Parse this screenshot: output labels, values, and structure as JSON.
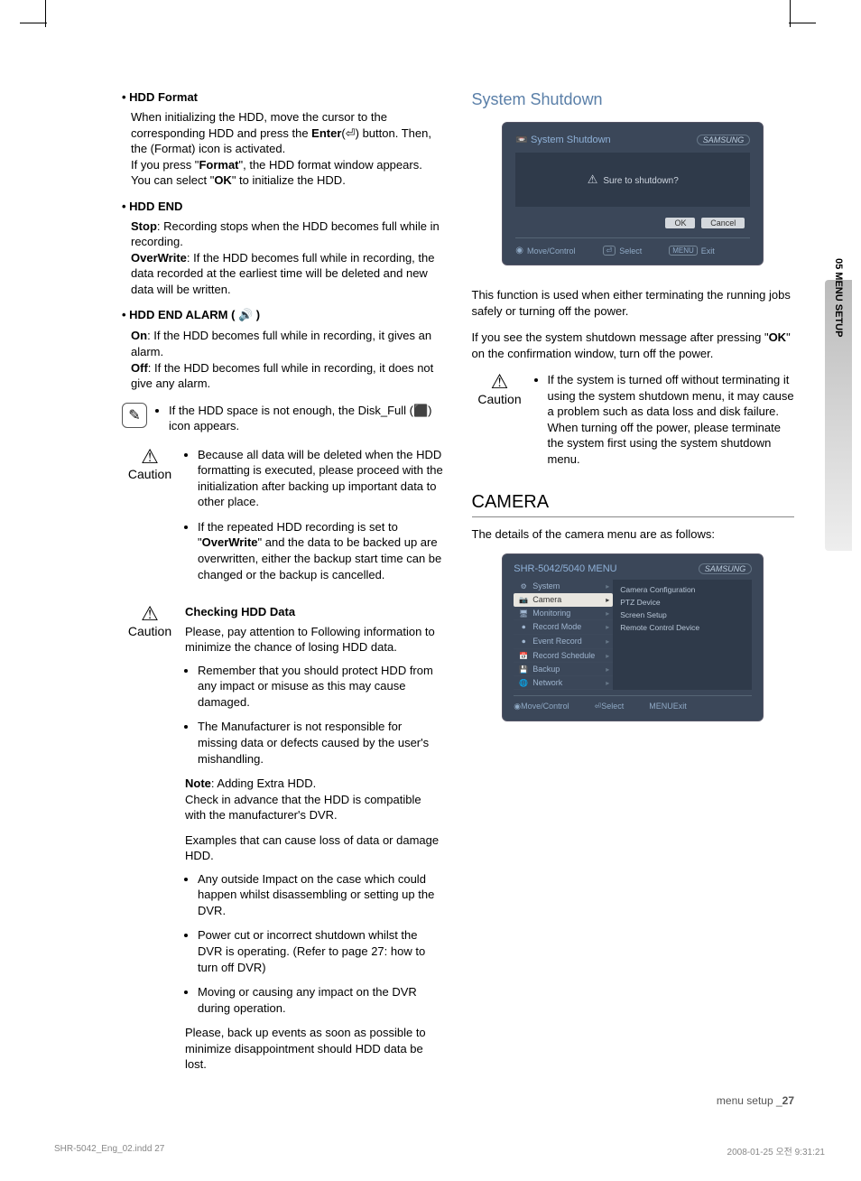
{
  "colors": {
    "heading_blue": "#5a7fa8",
    "dialog_bg": "#3b4759",
    "dialog_mid_bg": "#2f3a4a",
    "dialog_text": "#cfd6e0",
    "dialog_accent": "#8fb1d8"
  },
  "left": {
    "hdd_format": {
      "title": "HDD Format",
      "body_pre": "When initializing the HDD, move the cursor to the corresponding HDD and press the ",
      "enter": "Enter",
      "body_post": "(⏎) button. Then, the (Format) icon is activated.",
      "body2_pre": "If you press \"",
      "format": "Format",
      "body2_mid": "\", the HDD format window appears. You can select \"",
      "ok": "OK",
      "body2_post": "\" to initialize the HDD."
    },
    "hdd_end": {
      "title": "HDD END",
      "stop_label": "Stop",
      "stop": ": Recording stops when the HDD becomes full while in recording.",
      "over_label": "OverWrite",
      "over": ": If the HDD becomes full while in recording, the data recorded at the earliest time will be deleted and new data will be written."
    },
    "hdd_alarm": {
      "title": "HDD END ALARM ( 🔊 )",
      "on_label": "On",
      "on": ": If the HDD becomes full while in recording, it gives an alarm.",
      "off_label": "Off",
      "off": ": If the HDD becomes full while in recording, it does not give any alarm."
    },
    "note": "If the HDD space is not enough, the Disk_Full (⬛) icon appears.",
    "caution1": {
      "item1_pre": "Because all data will be deleted when the HDD formatting is executed, please proceed with the initialization after backing up important data to other place.",
      "item2_pre": "If the repeated HDD recording is set to \"",
      "item2_bold": "OverWrite",
      "item2_post": "\" and the data to be backed up are overwritten, either the backup start time can be changed or the backup is cancelled."
    },
    "caution2": {
      "heading": "Checking HDD Data",
      "intro": "Please, pay attention to Following information to minimize the chance of losing HDD data.",
      "b1": "Remember that you should protect HDD from any impact or misuse as this may cause damaged.",
      "b2": "The Manufacturer is not responsible for missing data or defects caused by the user's mishandling.",
      "note_label": "Note",
      "note_text": ": Adding Extra HDD.",
      "check": "Check in advance that the HDD is compatible with the manufacturer's DVR.",
      "examples": "Examples that can cause loss of data or damage HDD.",
      "e1": "Any outside Impact on the case which could happen whilst  disassembling or setting up the DVR.",
      "e2": "Power cut or incorrect shutdown whilst the DVR is operating. (Refer to page 27: how to turn off DVR)",
      "e3": "Moving or causing any impact on the DVR during operation.",
      "final": "Please, back up events as soon as possible to minimize disappointment should HDD data be lost."
    }
  },
  "right": {
    "shutdown_title": "System Shutdown",
    "dlg": {
      "title": "System Shutdown",
      "brand": "SAMSUNG",
      "msg": "Sure to shutdown?",
      "ok": "OK",
      "cancel": "Cancel",
      "move": "Move/Control",
      "select": "Select",
      "exit": "Exit"
    },
    "shutdown_body1": "This function is used when either terminating the running jobs safely or turning off the power.",
    "shutdown_body2a": "If you see the system shutdown message after pressing \"",
    "shutdown_body2b": "OK",
    "shutdown_body2c": "\" on the confirmation window, turn off the power.",
    "caution": "If the system is turned off without terminating it using the system shutdown menu, it may cause a problem such as data loss and disk failure.  When turning off the power, please terminate the system first using the system shutdown menu.",
    "camera_title": "CAMERA",
    "camera_intro": "The details of the camera menu are as follows:",
    "menu": {
      "title": "SHR-5042/5040 MENU",
      "items": [
        "System",
        "Camera",
        "Monitoring",
        "Record Mode",
        "Event Record",
        "Record Schedule",
        "Backup",
        "Network"
      ],
      "active_index": 1,
      "sub": [
        "Camera Configuration",
        "PTZ Device",
        "Screen Setup",
        "Remote Control Device"
      ],
      "move": "Move/Control",
      "select": "Select",
      "exit": "Exit"
    }
  },
  "sidetab": "05 MENU SETUP",
  "footer": {
    "label": "menu setup _",
    "page": "27"
  },
  "printfoot": {
    "left": "SHR-5042_Eng_02.indd   27",
    "right": "2008-01-25   오전 9:31:21"
  }
}
